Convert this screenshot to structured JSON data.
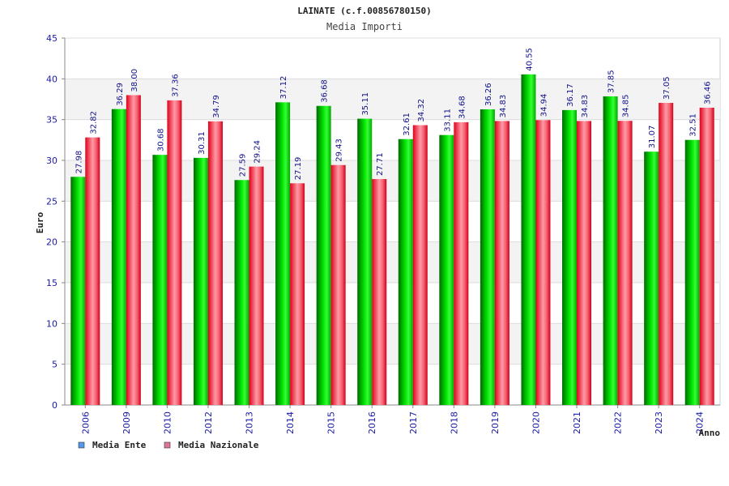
{
  "chart_data": {
    "type": "bar",
    "title": "LAINATE (c.f.00856780150)",
    "subtitle": "Media Importi",
    "xlabel": "Anno",
    "ylabel": "Euro",
    "ylim": [
      0,
      45
    ],
    "yticks": [
      "0",
      "5",
      "10",
      "15",
      "20",
      "25",
      "30",
      "35",
      "40",
      "45"
    ],
    "grid": true,
    "legend_position": "bottom-left",
    "categories": [
      "2006",
      "2009",
      "2010",
      "2012",
      "2013",
      "2014",
      "2015",
      "2016",
      "2017",
      "2018",
      "2019",
      "2020",
      "2021",
      "2022",
      "2023",
      "2024"
    ],
    "series": [
      {
        "name": "Media Ente",
        "color": "#00c000",
        "legend_color": "#5599ee",
        "values": [
          27.98,
          36.29,
          30.68,
          30.31,
          27.59,
          37.12,
          36.68,
          35.11,
          32.61,
          33.11,
          36.26,
          40.55,
          36.17,
          37.85,
          31.07,
          32.51
        ],
        "labels": [
          "27.98",
          "36.29",
          "30.68",
          "30.31",
          "27.59",
          "37.12",
          "36.68",
          "35.11",
          "32.61",
          "33.11",
          "36.26",
          "40.55",
          "36.17",
          "37.85",
          "31.07",
          "32.51"
        ]
      },
      {
        "name": "Media Nazionale",
        "color": "#ee1122",
        "legend_color": "#dd7799",
        "values": [
          32.82,
          38.0,
          37.36,
          34.79,
          29.24,
          27.19,
          29.43,
          27.71,
          34.32,
          34.68,
          34.83,
          34.94,
          34.83,
          34.85,
          37.05,
          36.46
        ],
        "labels": [
          "32.82",
          "38.00",
          "37.36",
          "34.79",
          "29.24",
          "27.19",
          "29.43",
          "27.71",
          "34.32",
          "34.68",
          "34.83",
          "34.94",
          "34.83",
          "34.85",
          "37.05",
          "36.46"
        ]
      }
    ]
  }
}
